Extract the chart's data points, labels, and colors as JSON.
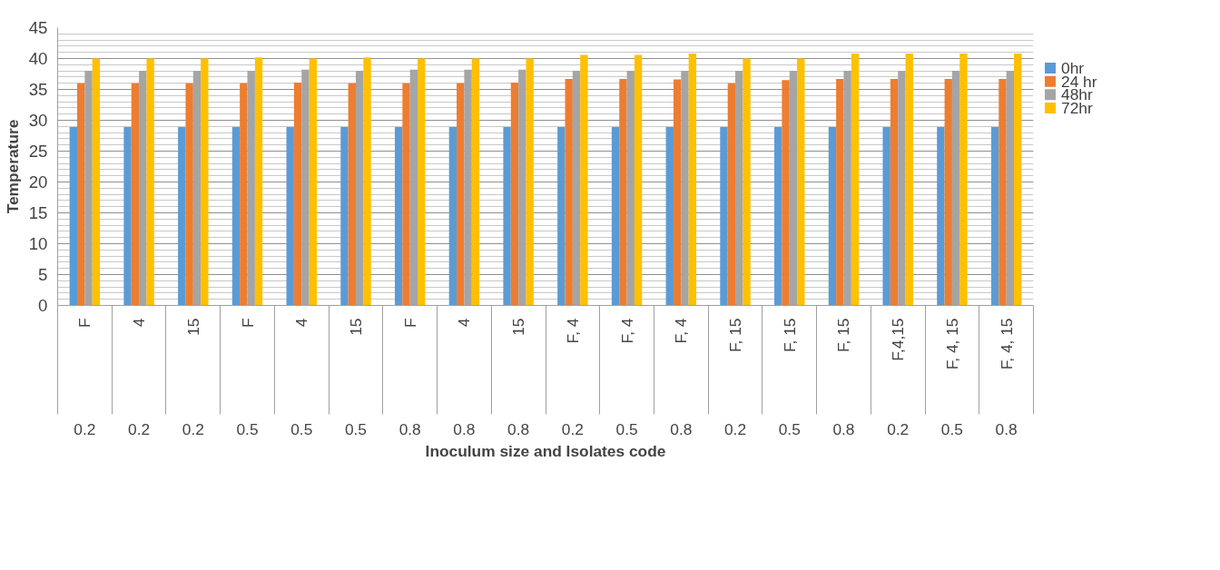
{
  "chart_data": {
    "type": "bar",
    "ylabel": "Temperature",
    "annotations": [
      "Inoculum size and Isolates code"
    ],
    "categories": [
      "F\n0.2",
      "4\n0.2",
      "15\n0.2",
      "F\n0.5",
      "4\n0.5",
      "15\n0.5",
      "F\n0.8",
      "4\n0.8",
      "15\n0.8",
      "F, 4\n0.2",
      "F, 4\n0.5",
      "F, 4\n0.8",
      "F, 15\n0.2",
      "F, 15\n0.5",
      "F, 15\n0.8",
      "F,4,15\n0.2",
      "F, 4, 15\n0.5",
      "F, 4, 15\n0.8"
    ],
    "series": [
      {
        "name": "0hr",
        "color": "#5b9bd5",
        "values": [
          28.9,
          28.9,
          28.9,
          28.9,
          28.9,
          28.9,
          28.9,
          28.9,
          28.9,
          28.9,
          28.9,
          28.9,
          28.9,
          28.9,
          28.9,
          28.9,
          28.9,
          28.9
        ]
      },
      {
        "name": "24 hr",
        "color": "#ed7d31",
        "values": [
          36.0,
          36.0,
          36.0,
          36.0,
          36.1,
          36.0,
          36.0,
          36.0,
          36.1,
          36.7,
          36.7,
          36.6,
          36.0,
          36.5,
          36.7,
          36.7,
          36.7,
          36.7
        ]
      },
      {
        "name": "48hr",
        "color": "#a5a5a5",
        "values": [
          38.0,
          38.0,
          38.0,
          38.0,
          38.2,
          38.0,
          38.2,
          38.2,
          38.2,
          38.0,
          38.0,
          38.0,
          38.0,
          38.0,
          38.0,
          38.0,
          38.0,
          38.0
        ]
      },
      {
        "name": "72hr",
        "color": "#ffc000",
        "values": [
          40.0,
          40.0,
          40.0,
          40.2,
          40.0,
          40.2,
          40.0,
          40.0,
          40.0,
          40.6,
          40.6,
          40.8,
          40.0,
          40.0,
          40.8,
          40.8,
          40.8,
          40.8
        ]
      }
    ],
    "ylim": [
      0,
      45
    ],
    "yticks": [
      0,
      5,
      10,
      15,
      20,
      25,
      30,
      35,
      40,
      45
    ],
    "grid": "y",
    "legend": "right"
  }
}
